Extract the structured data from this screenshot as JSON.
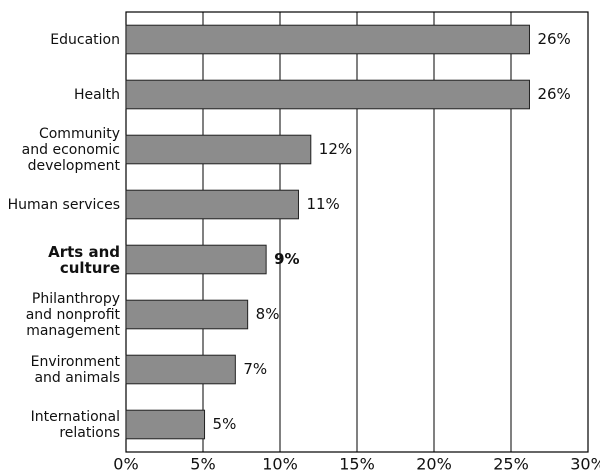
{
  "chart_data": {
    "type": "hbar",
    "categories": [
      "Education",
      "Health",
      "Community\nand economic\ndevelopment",
      "Human services",
      "Arts and\nculture",
      "Philanthropy\nand nonprofit\nmanagement",
      "Environment\nand animals",
      "International\nrelations"
    ],
    "values": [
      26.2,
      26.2,
      12.0,
      11.2,
      9.1,
      7.9,
      7.1,
      5.1
    ],
    "value_labels": [
      "26%",
      "26%",
      "12%",
      "11%",
      "9%",
      "8%",
      "7%",
      "5%"
    ],
    "highlight_index": 4,
    "color": "#8c8c8c",
    "xlim": [
      0,
      30
    ],
    "xticks": [
      {
        "value": 0,
        "label": "0%"
      },
      {
        "value": 5,
        "label": "5%"
      },
      {
        "value": 10,
        "label": "10%"
      },
      {
        "value": 15,
        "label": "15%"
      },
      {
        "value": 20,
        "label": "20%"
      },
      {
        "value": 25,
        "label": "25%"
      },
      {
        "value": 30,
        "label": "30%"
      }
    ],
    "grid": true
  }
}
